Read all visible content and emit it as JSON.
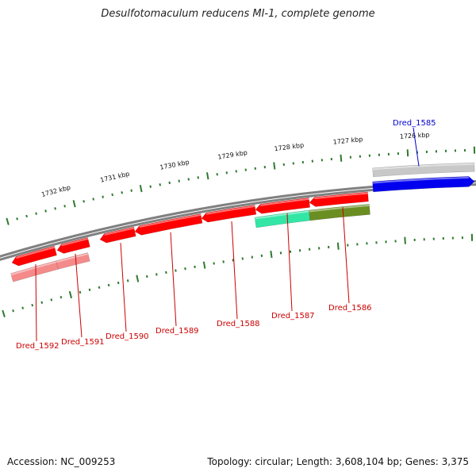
{
  "title": "Desulfotomaculum reducens MI-1, complete genome",
  "footer": {
    "accession": "Accession: NC_009253",
    "summary": "Topology: circular; Length: 3,608,104 bp; Genes: 3,375"
  },
  "colors": {
    "backbone": "#808080",
    "ticks": "#2f7a2f",
    "forward_cds": "#ff0000",
    "reverse_cds": "#ff0000",
    "reverse_cds_faded": "#f48a8a",
    "highlight_blue": "#0000ee",
    "label_red": "#cc0000",
    "label_blue": "#0000cc",
    "teal_feature": "#33e6a6",
    "olive_feature": "#6b8e23",
    "gray_feature": "#c8c8c8"
  },
  "kbp_labels": [
    {
      "kbp": 1726,
      "text": "1726 kbp"
    },
    {
      "kbp": 1727,
      "text": "1727 kbp"
    },
    {
      "kbp": 1728,
      "text": "1728 kbp"
    },
    {
      "kbp": 1729,
      "text": "1729 kbp"
    },
    {
      "kbp": 1730,
      "text": "1730 kbp"
    },
    {
      "kbp": 1731,
      "text": "1731 kbp"
    },
    {
      "kbp": 1732,
      "text": "1732 kbp"
    }
  ],
  "genes": [
    {
      "label": "Dred_1585",
      "color_key": "highlight_blue",
      "label_color": "label_blue"
    },
    {
      "label": "Dred_1586",
      "color_key": "reverse_cds",
      "label_color": "label_red"
    },
    {
      "label": "Dred_1587",
      "color_key": "reverse_cds",
      "label_color": "label_red"
    },
    {
      "label": "Dred_1588",
      "color_key": "reverse_cds",
      "label_color": "label_red"
    },
    {
      "label": "Dred_1589",
      "color_key": "reverse_cds",
      "label_color": "label_red"
    },
    {
      "label": "Dred_1590",
      "color_key": "reverse_cds",
      "label_color": "label_red"
    },
    {
      "label": "Dred_1591",
      "color_key": "reverse_cds",
      "label_color": "label_red"
    },
    {
      "label": "Dred_1592",
      "color_key": "reverse_cds",
      "label_color": "label_red"
    }
  ]
}
